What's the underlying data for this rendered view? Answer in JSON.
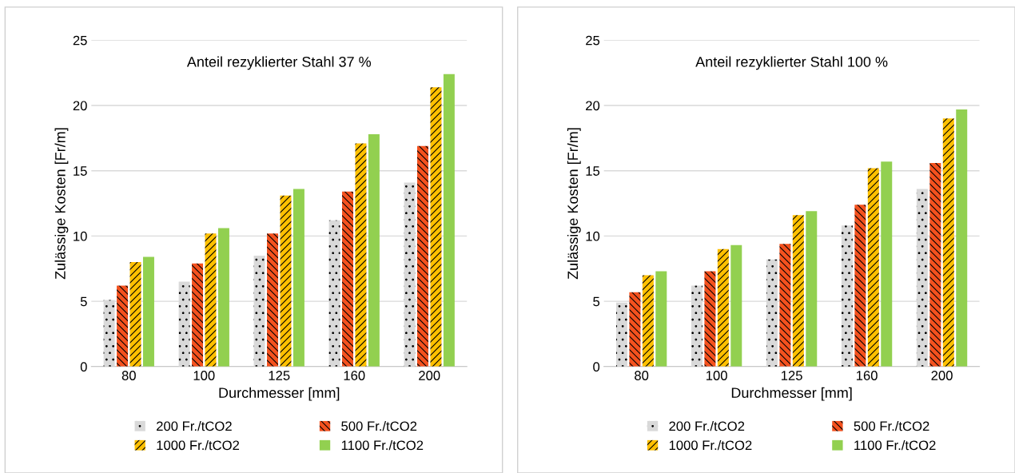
{
  "chart_data": [
    {
      "type": "bar",
      "title": "Anteil rezyklierter Stahl 37 %",
      "xlabel": "Durchmesser [mm]",
      "ylabel": "Zulässige Kosten [Fr/m]",
      "categories": [
        "80",
        "100",
        "125",
        "160",
        "200"
      ],
      "ylim": [
        0,
        25
      ],
      "yticks": [
        0,
        5,
        10,
        15,
        20,
        25
      ],
      "grid": "y",
      "legend": "bottom",
      "series": [
        {
          "name": "200 Fr./tCO2",
          "color": "#d9d9d9",
          "values": [
            5.1,
            6.5,
            8.5,
            11.2,
            14.1
          ]
        },
        {
          "name": "500 Fr./tCO2",
          "color": "#f4511e",
          "values": [
            6.2,
            7.9,
            10.2,
            13.4,
            16.9
          ]
        },
        {
          "name": "1000 Fr./tCO2",
          "color": "#ffc000",
          "values": [
            8.0,
            10.2,
            13.1,
            17.1,
            21.4
          ]
        },
        {
          "name": "1100 Fr./tCO2",
          "color": "#92d050",
          "values": [
            8.4,
            10.6,
            13.6,
            17.8,
            22.4
          ]
        }
      ]
    },
    {
      "type": "bar",
      "title": "Anteil rezyklierter Stahl 100 %",
      "xlabel": "Durchmesser [mm]",
      "ylabel": "Zulässige Kosten [Fr/m]",
      "categories": [
        "80",
        "100",
        "125",
        "160",
        "200"
      ],
      "ylim": [
        0,
        25
      ],
      "yticks": [
        0,
        5,
        10,
        15,
        20,
        25
      ],
      "grid": "y",
      "legend": "bottom",
      "series": [
        {
          "name": "200 Fr./tCO2",
          "color": "#d9d9d9",
          "values": [
            4.9,
            6.2,
            8.2,
            10.8,
            13.6
          ]
        },
        {
          "name": "500 Fr./tCO2",
          "color": "#f4511e",
          "values": [
            5.7,
            7.3,
            9.4,
            12.4,
            15.6
          ]
        },
        {
          "name": "1000 Fr./tCO2",
          "color": "#ffc000",
          "values": [
            7.0,
            9.0,
            11.6,
            15.2,
            19.0
          ]
        },
        {
          "name": "1100 Fr./tCO2",
          "color": "#92d050",
          "values": [
            7.3,
            9.3,
            11.9,
            15.7,
            19.7
          ]
        }
      ]
    }
  ]
}
